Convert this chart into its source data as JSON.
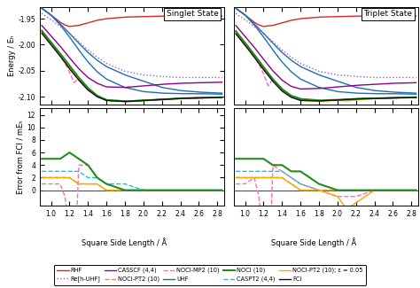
{
  "title_singlet": "Singlet State",
  "title_triplet": "Triplet State",
  "xlabel": "Square Side Length / Å",
  "ylabel_top": "Energy / Eₕ",
  "ylabel_bottom": "Error from FCI / mEₕ",
  "colors": {
    "RHF": "#d62728",
    "Re_h_UHF": "#9467bd",
    "CASSCF44": "#8b008b",
    "NOCI_PT2_10": "#ff8c00",
    "NOCI_MP2_10": "#ff69b4",
    "UHF": "#1e6eb5",
    "NOCI10": "#228b22",
    "CASPT244": "#00ced1",
    "NOCI_PT2_10_eps": "#ffa500",
    "FCI": "#111111"
  }
}
